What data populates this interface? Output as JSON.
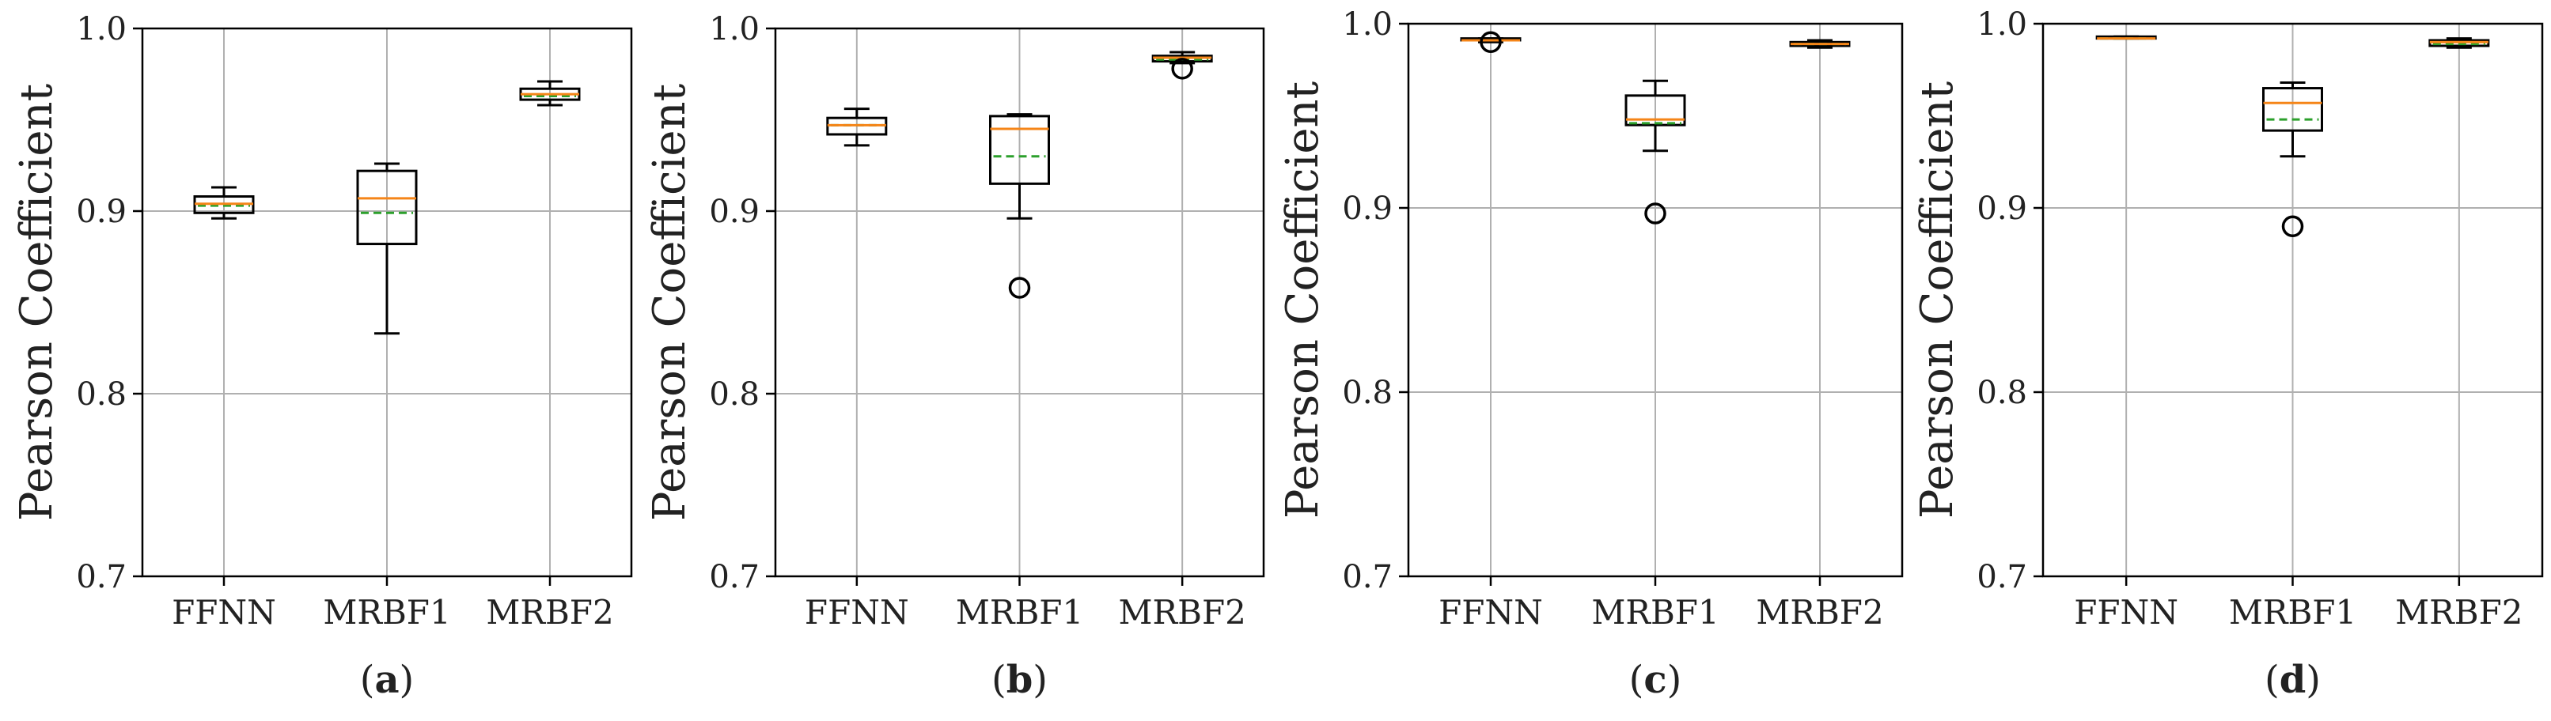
{
  "figure": {
    "colors": {
      "box": "#000000",
      "median": "#f58518",
      "mean": "#2ca02c",
      "grid": "#b0b0b0",
      "text": "#222222"
    }
  },
  "chart_data": [
    {
      "type": "box",
      "panel_label": "a",
      "ylabel": "Pearson Coefficient",
      "xlabel": "",
      "title": "",
      "categories": [
        "FFNN",
        "MRBF1",
        "MRBF2"
      ],
      "ylim": [
        0.7,
        1.0
      ],
      "yticks": [
        "0.7",
        "0.8",
        "0.9",
        "1.0"
      ],
      "yticks_values": [
        0.7,
        0.8,
        0.9,
        1.0
      ],
      "grid": true,
      "boxes": [
        {
          "whislo": 0.896,
          "q1": 0.899,
          "med": 0.904,
          "q3": 0.908,
          "whishi": 0.913,
          "mean": 0.903,
          "fliers": []
        },
        {
          "whislo": 0.833,
          "q1": 0.882,
          "med": 0.907,
          "q3": 0.922,
          "whishi": 0.926,
          "mean": 0.899,
          "fliers": []
        },
        {
          "whislo": 0.958,
          "q1": 0.961,
          "med": 0.964,
          "q3": 0.967,
          "whishi": 0.971,
          "mean": 0.963,
          "fliers": []
        }
      ]
    },
    {
      "type": "box",
      "panel_label": "b",
      "ylabel": "Pearson Coefficient",
      "xlabel": "",
      "title": "",
      "categories": [
        "FFNN",
        "MRBF1",
        "MRBF2"
      ],
      "ylim": [
        0.7,
        1.0
      ],
      "yticks": [
        "0.7",
        "0.8",
        "0.9",
        "1.0"
      ],
      "yticks_values": [
        0.7,
        0.8,
        0.9,
        1.0
      ],
      "grid": true,
      "boxes": [
        {
          "whislo": 0.936,
          "q1": 0.942,
          "med": 0.947,
          "q3": 0.951,
          "whishi": 0.956,
          "mean": 0.947,
          "fliers": []
        },
        {
          "whislo": 0.896,
          "q1": 0.915,
          "med": 0.945,
          "q3": 0.952,
          "whishi": 0.953,
          "mean": 0.93,
          "fliers": [
            0.858
          ]
        },
        {
          "whislo": 0.981,
          "q1": 0.982,
          "med": 0.984,
          "q3": 0.985,
          "whishi": 0.987,
          "mean": 0.983,
          "fliers": [
            0.978
          ]
        }
      ]
    },
    {
      "type": "box",
      "panel_label": "c",
      "ylabel": "Pearson Coefficient",
      "xlabel": "",
      "title": "",
      "categories": [
        "FFNN",
        "MRBF1",
        "MRBF2"
      ],
      "ylim": [
        0.7,
        1.0
      ],
      "yticks": [
        "0.7",
        "0.8",
        "0.9",
        "1.0"
      ],
      "yticks_values": [
        0.7,
        0.8,
        0.9,
        1.0
      ],
      "grid": true,
      "boxes": [
        {
          "whislo": 0.99,
          "q1": 0.991,
          "med": 0.991,
          "q3": 0.992,
          "whishi": 0.992,
          "mean": 0.991,
          "fliers": [
            0.99
          ]
        },
        {
          "whislo": 0.931,
          "q1": 0.945,
          "med": 0.948,
          "q3": 0.961,
          "whishi": 0.969,
          "mean": 0.946,
          "fliers": [
            0.897
          ]
        },
        {
          "whislo": 0.987,
          "q1": 0.988,
          "med": 0.989,
          "q3": 0.99,
          "whishi": 0.991,
          "mean": 0.989,
          "fliers": []
        }
      ]
    },
    {
      "type": "box",
      "panel_label": "d",
      "ylabel": "Pearson Coefficient",
      "xlabel": "",
      "title": "",
      "categories": [
        "FFNN",
        "MRBF1",
        "MRBF2"
      ],
      "ylim": [
        0.7,
        1.0
      ],
      "yticks": [
        "0.7",
        "0.8",
        "0.9",
        "1.0"
      ],
      "yticks_values": [
        0.7,
        0.8,
        0.9,
        1.0
      ],
      "grid": true,
      "boxes": [
        {
          "whislo": 0.992,
          "q1": 0.992,
          "med": 0.992,
          "q3": 0.993,
          "whishi": 0.993,
          "mean": 0.992,
          "fliers": []
        },
        {
          "whislo": 0.928,
          "q1": 0.942,
          "med": 0.957,
          "q3": 0.965,
          "whishi": 0.968,
          "mean": 0.948,
          "fliers": [
            0.89
          ]
        },
        {
          "whislo": 0.987,
          "q1": 0.988,
          "med": 0.99,
          "q3": 0.991,
          "whishi": 0.992,
          "mean": 0.989,
          "fliers": []
        }
      ]
    }
  ]
}
